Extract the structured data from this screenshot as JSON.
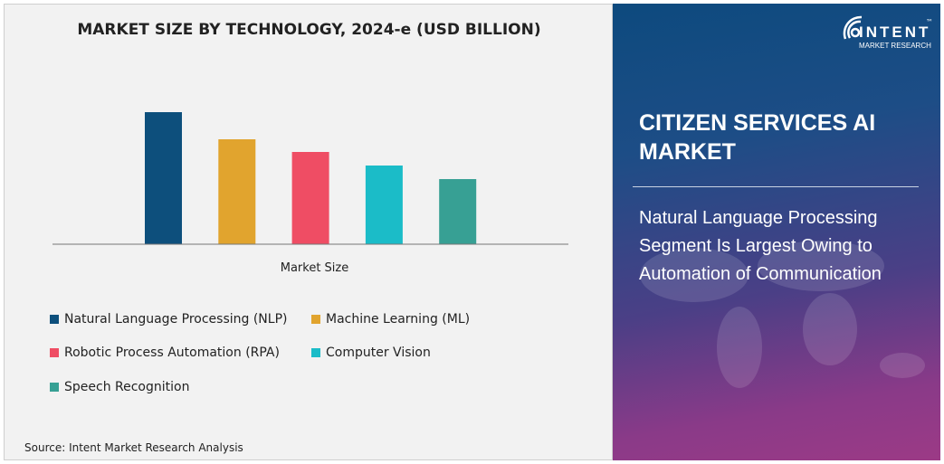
{
  "chart_data": {
    "type": "bar",
    "title": "MARKET SIZE BY TECHNOLOGY, 2024-e (USD BILLION)",
    "xlabel": "Market Size",
    "ylabel": "",
    "categories": [
      "Market Size"
    ],
    "series": [
      {
        "name": "Natural Language Processing (NLP)",
        "values": [
          146
        ],
        "color": "#0d4f7c"
      },
      {
        "name": "Machine Learning (ML)",
        "values": [
          116
        ],
        "color": "#e1a42e"
      },
      {
        "name": "Robotic Process Automation (RPA)",
        "values": [
          102
        ],
        "color": "#ef4d64"
      },
      {
        "name": "Computer Vision",
        "values": [
          87
        ],
        "color": "#1bbcc8"
      },
      {
        "name": "Speech Recognition",
        "values": [
          72
        ],
        "color": "#37a094"
      }
    ],
    "values_note_hidden": null,
    "ylim": [
      0,
      146
    ],
    "grid": false,
    "legend_position": "bottom"
  },
  "source": "Source: Intent Market Research Analysis",
  "panel": {
    "title": "CITIZEN SERVICES AI MARKET",
    "subtitle": "Natural Language Processing Segment Is Largest Owing to Automation of Communication"
  },
  "logo": {
    "brand": "INTENT",
    "sub": "MARKET RESEARCH",
    "tm": "™"
  }
}
